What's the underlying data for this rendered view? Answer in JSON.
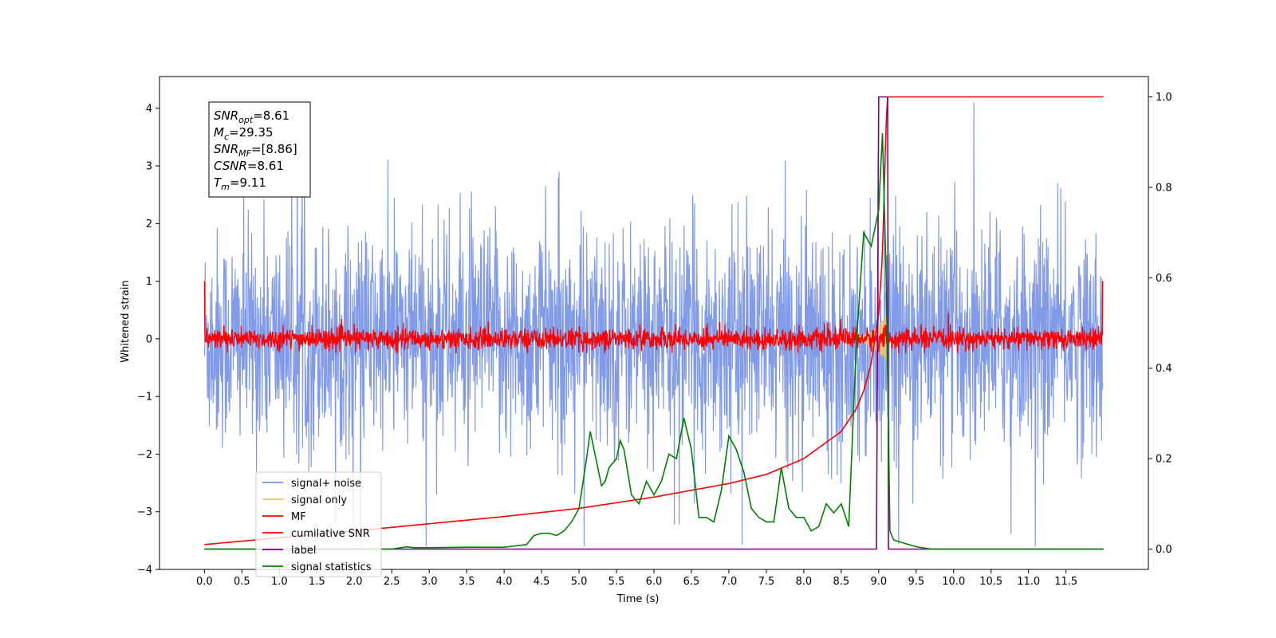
{
  "chart_data": {
    "type": "line",
    "xlabel": "Time (s)",
    "ylabel": "Whitened strain",
    "xlim": [
      -0.6,
      12.6
    ],
    "ylim": [
      -4.0,
      4.55
    ],
    "ylim_right": [
      -0.045,
      1.045
    ],
    "xticks": [
      0.0,
      0.5,
      1.0,
      1.5,
      2.0,
      2.5,
      3.0,
      3.5,
      4.0,
      4.5,
      5.0,
      5.5,
      6.0,
      6.5,
      7.0,
      7.5,
      8.0,
      8.5,
      9.0,
      9.5,
      10.0,
      10.5,
      11.0,
      11.5
    ],
    "xtick_labels": [
      "0.0",
      "0.5",
      "1.0",
      "1.5",
      "2.0",
      "2.5",
      "3.0",
      "3.5",
      "4.0",
      "4.5",
      "5.0",
      "5.5",
      "6.0",
      "6.5",
      "7.0",
      "7.5",
      "8.0",
      "8.5",
      "9.0",
      "9.5",
      "10.0",
      "10.5",
      "11.0",
      "11.5"
    ],
    "yticks": [
      -4,
      -3,
      -2,
      -1,
      0,
      1,
      2,
      3,
      4
    ],
    "ytick_labels": [
      "−4",
      "−3",
      "−2",
      "−1",
      "0",
      "1",
      "2",
      "3",
      "4"
    ],
    "yticks_right": [
      0.0,
      0.2,
      0.4,
      0.6,
      0.8,
      1.0
    ],
    "ytick_labels_right": [
      "0.0",
      "0.2",
      "0.4",
      "0.6",
      "0.8",
      "1.0"
    ],
    "grid": false,
    "legend_position": "lower-left",
    "annotation": [
      {
        "sym": "SNR",
        "sub": "opt",
        "value": "=8.61"
      },
      {
        "sym": "M",
        "sub": "c",
        "value": "=29.35"
      },
      {
        "sym": "SNR",
        "sub": "MF",
        "value": "=[8.86]"
      },
      {
        "sym": "CSNR",
        "sub": "",
        "value": "=8.61"
      },
      {
        "sym": "T",
        "sub": "m",
        "value": "=9.11"
      }
    ],
    "series": [
      {
        "name": "signal+ noise",
        "axis": "left",
        "color": "#7b96e8",
        "style": "noise",
        "duration": [
          0.0,
          11.99
        ],
        "typical_range": [
          -2.3,
          2.3
        ],
        "max": 4.1,
        "min": -3.6
      },
      {
        "name": "signal only",
        "axis": "left",
        "color": "#f5c36a",
        "style": "chirp",
        "x": [
          8.7,
          8.8,
          8.9,
          9.0,
          9.05,
          9.1
        ],
        "amplitude": [
          0.05,
          0.1,
          0.2,
          0.35,
          0.4,
          0.0
        ]
      },
      {
        "name": "MF",
        "axis": "left",
        "color": "#ff0000",
        "style": "noise",
        "duration": [
          0.0,
          11.99
        ],
        "typical_range": [
          -0.15,
          0.15
        ],
        "max": 0.45,
        "min": -0.25,
        "x": [
          0.0,
          0.02,
          11.97,
          11.99
        ],
        "y": [
          1.0,
          0.1,
          0.1,
          1.0
        ]
      },
      {
        "name": "cumilative SNR",
        "axis": "right",
        "color": "#ff0000",
        "x": [
          0.0,
          1.0,
          2.0,
          3.0,
          4.0,
          5.0,
          6.0,
          7.0,
          7.5,
          8.0,
          8.5,
          8.7,
          8.8,
          8.9,
          9.0,
          9.05,
          9.1,
          9.12,
          12.0
        ],
        "y": [
          0.01,
          0.025,
          0.04,
          0.056,
          0.072,
          0.09,
          0.115,
          0.145,
          0.165,
          0.2,
          0.26,
          0.31,
          0.35,
          0.41,
          0.52,
          0.65,
          0.95,
          1.0,
          1.0
        ]
      },
      {
        "name": "label",
        "axis": "right",
        "color": "#800080",
        "x": [
          0.0,
          8.97,
          9.0,
          9.12,
          9.13,
          12.0
        ],
        "y": [
          0.0,
          0.0,
          1.0,
          1.0,
          0.0,
          0.0
        ]
      },
      {
        "name": "signal statistics",
        "axis": "right",
        "color": "#008000",
        "x": [
          0.0,
          0.5,
          1.0,
          1.5,
          2.0,
          2.5,
          2.7,
          2.8,
          3.0,
          3.5,
          4.0,
          4.3,
          4.4,
          4.5,
          4.6,
          4.7,
          4.8,
          4.9,
          5.0,
          5.1,
          5.15,
          5.2,
          5.3,
          5.35,
          5.4,
          5.5,
          5.55,
          5.6,
          5.7,
          5.8,
          5.9,
          6.0,
          6.1,
          6.2,
          6.3,
          6.4,
          6.5,
          6.6,
          6.7,
          6.8,
          6.9,
          7.0,
          7.1,
          7.2,
          7.3,
          7.4,
          7.5,
          7.6,
          7.7,
          7.8,
          7.9,
          8.0,
          8.1,
          8.2,
          8.3,
          8.4,
          8.5,
          8.6,
          8.7,
          8.8,
          8.9,
          9.0,
          9.05,
          9.1,
          9.15,
          9.2,
          9.3,
          9.5,
          9.7,
          10.0,
          12.0
        ],
        "y": [
          0.0,
          0.0,
          0.0,
          0.0,
          0.0,
          0.0,
          0.005,
          0.003,
          0.003,
          0.004,
          0.004,
          0.01,
          0.03,
          0.035,
          0.035,
          0.03,
          0.04,
          0.06,
          0.09,
          0.2,
          0.26,
          0.22,
          0.14,
          0.15,
          0.18,
          0.2,
          0.24,
          0.22,
          0.12,
          0.1,
          0.15,
          0.12,
          0.15,
          0.21,
          0.2,
          0.29,
          0.22,
          0.07,
          0.07,
          0.06,
          0.13,
          0.25,
          0.22,
          0.17,
          0.09,
          0.07,
          0.06,
          0.06,
          0.18,
          0.09,
          0.07,
          0.07,
          0.04,
          0.05,
          0.1,
          0.08,
          0.1,
          0.05,
          0.45,
          0.7,
          0.67,
          0.75,
          0.92,
          0.6,
          0.04,
          0.02,
          0.015,
          0.005,
          0.0,
          0.0,
          0.0
        ]
      }
    ]
  }
}
